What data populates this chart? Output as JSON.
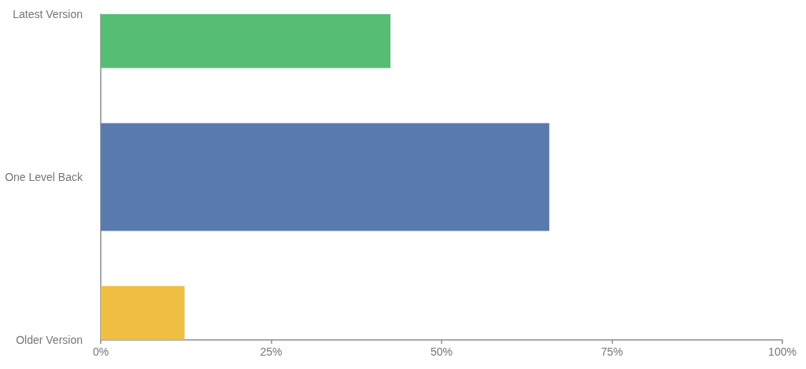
{
  "chart_data": {
    "type": "bar",
    "orientation": "horizontal",
    "categories": [
      "Latest Version",
      "One Level Back",
      "Older Version"
    ],
    "values": [
      42.5,
      65.8,
      12.3
    ],
    "colors": [
      "#56bd75",
      "#587aaf",
      "#efbf41"
    ],
    "xlim": [
      0,
      100
    ],
    "xticks": [
      {
        "value": 0,
        "label": "0%"
      },
      {
        "value": 25,
        "label": "25%"
      },
      {
        "value": 50,
        "label": "50%"
      },
      {
        "value": 75,
        "label": "75%"
      },
      {
        "value": 100,
        "label": "100%"
      }
    ]
  }
}
